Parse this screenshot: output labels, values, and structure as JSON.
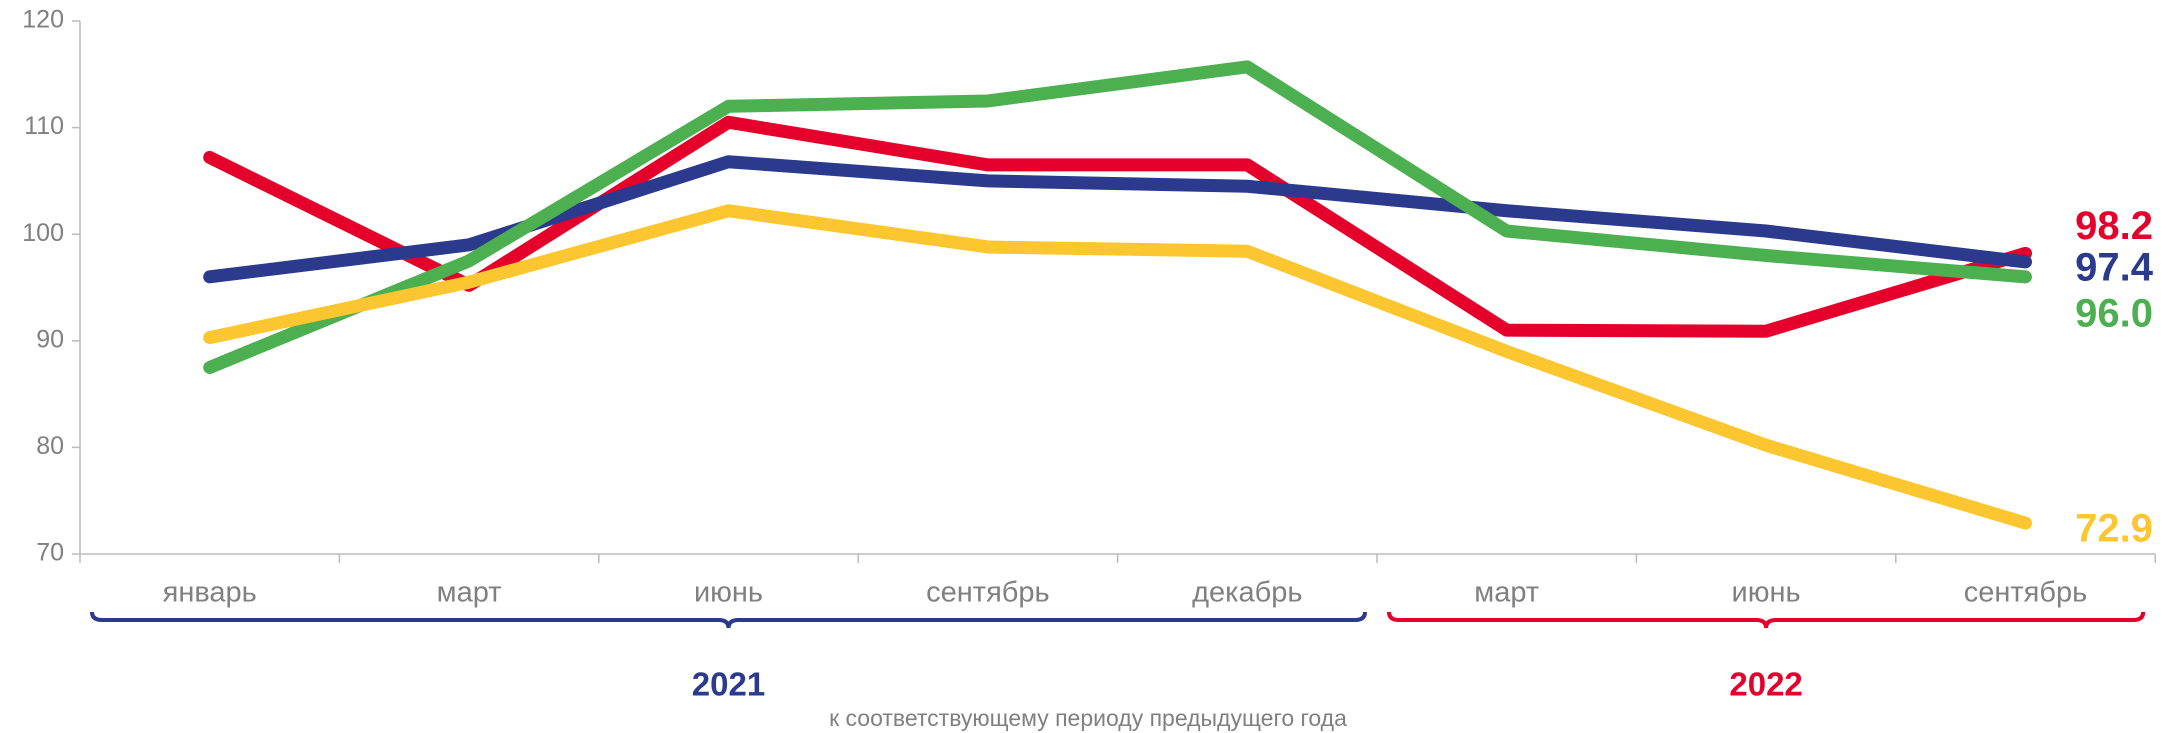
{
  "chart_data": {
    "type": "line",
    "categories": [
      "январь",
      "март",
      "июнь",
      "сентябрь",
      "декабрь",
      "март",
      "июнь",
      "сентябрь"
    ],
    "series": [
      {
        "color": "#e4002b",
        "values": [
          107.2,
          95.2,
          110.5,
          106.5,
          106.5,
          91.0,
          90.9,
          98.2
        ],
        "value_labels": [
          null,
          null,
          null,
          null,
          null,
          null,
          null,
          "98.2"
        ]
      },
      {
        "color": "#2b3a8c",
        "values": [
          96.0,
          99.0,
          106.8,
          105.0,
          104.5,
          102.2,
          100.3,
          97.4
        ],
        "value_labels": [
          null,
          null,
          null,
          null,
          null,
          null,
          null,
          "97.4"
        ]
      },
      {
        "color": "#4caf50",
        "values": [
          87.5,
          97.5,
          112.0,
          112.5,
          115.7,
          100.3,
          98.0,
          96.0
        ],
        "value_labels": [
          null,
          null,
          null,
          null,
          null,
          null,
          null,
          "96.0"
        ]
      },
      {
        "color": "#fcc630",
        "values": [
          90.3,
          95.5,
          102.2,
          98.8,
          98.4,
          89.0,
          80.2,
          72.9
        ],
        "value_labels": [
          null,
          null,
          null,
          null,
          null,
          null,
          null,
          "72.9"
        ]
      }
    ],
    "ylim": [
      70,
      120
    ],
    "yticks": [
      70,
      80,
      90,
      100,
      110,
      120
    ],
    "groups": [
      {
        "label": "2021",
        "start": 0,
        "end": 4,
        "color": "#2b3a8c"
      },
      {
        "label": "2022",
        "start": 5,
        "end": 7,
        "color": "#e4002b"
      }
    ],
    "note": "к соответствующему периоду предыдущего года"
  }
}
